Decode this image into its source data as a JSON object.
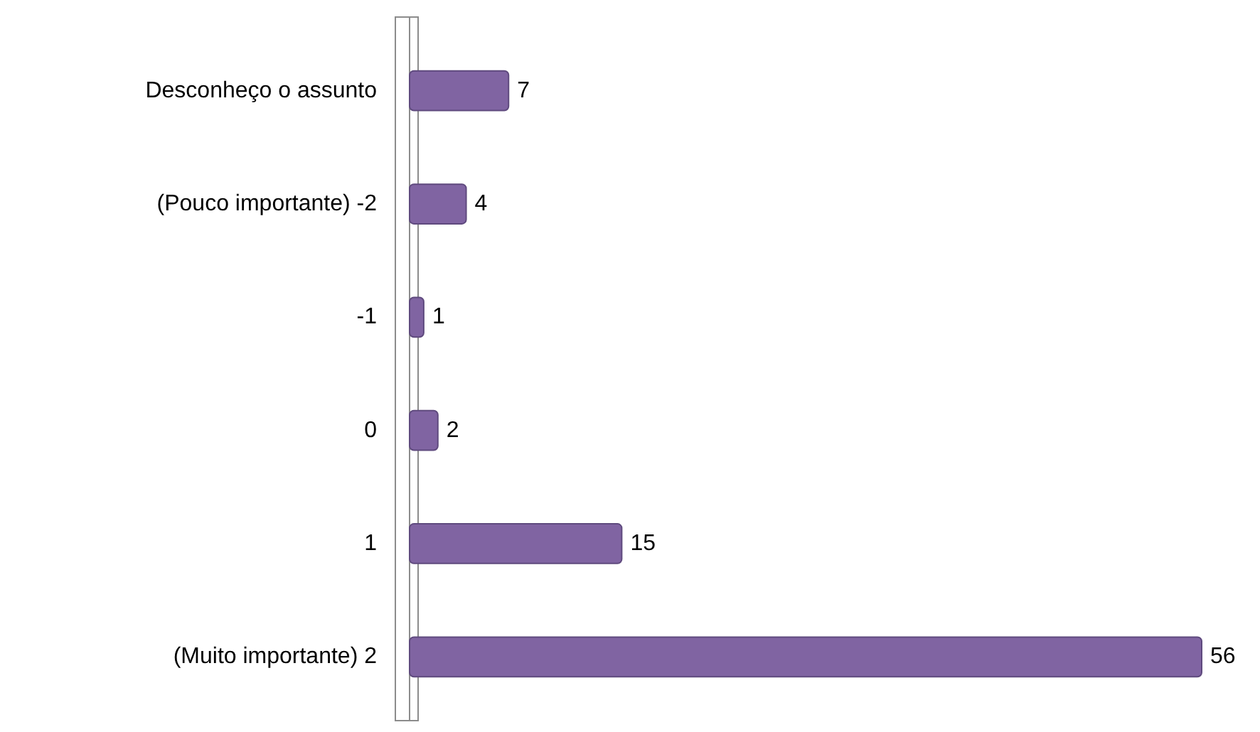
{
  "chart_data": {
    "type": "bar",
    "orientation": "horizontal",
    "categories": [
      "Desconheço o assunto",
      "(Pouco importante) -2",
      "-1",
      "0",
      "1",
      "(Muito importante) 2"
    ],
    "values": [
      7,
      4,
      1,
      2,
      15,
      56
    ],
    "color": "#8064a2",
    "data_labels": true
  }
}
